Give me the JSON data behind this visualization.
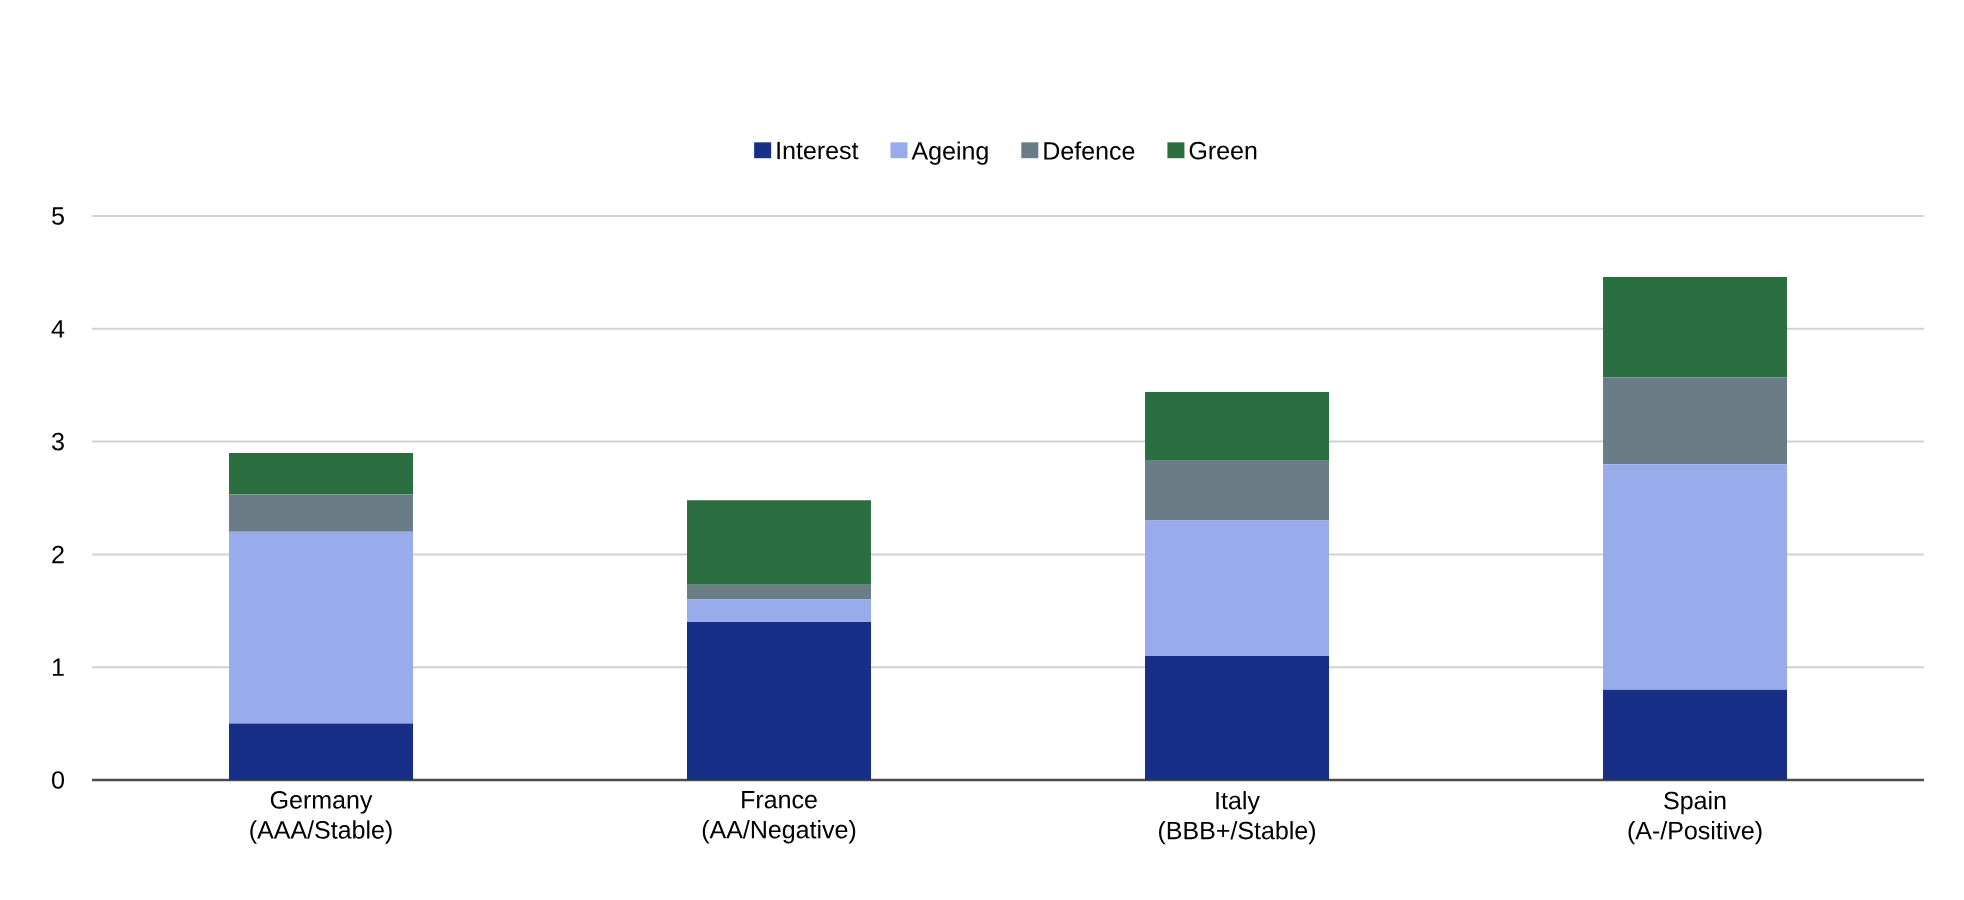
{
  "chart_data": {
    "type": "bar",
    "stacked": true,
    "categories": [
      "Germany (AAA/Stable)",
      "France (AA/Negative)",
      "Italy (BBB+/Stable)",
      "Spain (A-/Positive)"
    ],
    "series": [
      {
        "name": "Interest",
        "color": "#172f86",
        "values": [
          0.5,
          1.4,
          1.1,
          0.8
        ]
      },
      {
        "name": "Ageing",
        "color": "#98abeb",
        "values": [
          1.7,
          0.2,
          1.2,
          2.0
        ]
      },
      {
        "name": "Defence",
        "color": "#6a7d87",
        "values": [
          0.33,
          0.13,
          0.53,
          0.77
        ]
      },
      {
        "name": "Green",
        "color": "#2b6f41",
        "values": [
          0.37,
          0.75,
          0.61,
          0.89
        ]
      }
    ],
    "ylim": [
      0,
      5
    ],
    "yticks": [
      0,
      1,
      2,
      3,
      4,
      5
    ],
    "grid": "y",
    "legend": "top"
  }
}
